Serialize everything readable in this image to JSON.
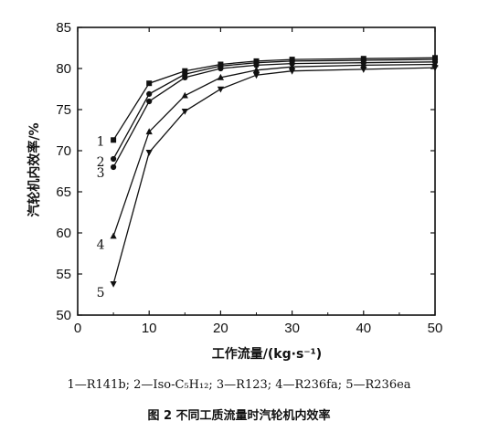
{
  "chart_data": {
    "type": "line",
    "xlabel": "工作流量/(kg·s⁻¹)",
    "ylabel": "汽轮机内效率/%",
    "xlim": [
      0,
      50
    ],
    "ylim": [
      50,
      85
    ],
    "xticks": [
      0,
      10,
      20,
      30,
      40,
      50
    ],
    "yticks": [
      50,
      55,
      60,
      65,
      70,
      75,
      80,
      85
    ],
    "grid": false,
    "x": [
      5,
      10,
      15,
      20,
      25,
      30,
      40,
      50
    ],
    "series": [
      {
        "name": "1",
        "marker": "square",
        "values": [
          71.3,
          78.2,
          79.7,
          80.5,
          80.9,
          81.1,
          81.2,
          81.3
        ]
      },
      {
        "name": "2",
        "marker": "circle",
        "values": [
          69.0,
          76.9,
          79.3,
          80.3,
          80.7,
          80.9,
          81.0,
          81.1
        ]
      },
      {
        "name": "3",
        "marker": "circle",
        "values": [
          68.0,
          76.0,
          78.9,
          80.0,
          80.4,
          80.6,
          80.7,
          80.8
        ]
      },
      {
        "name": "4",
        "marker": "triangle-up",
        "values": [
          59.6,
          72.3,
          76.7,
          78.9,
          79.8,
          80.2,
          80.4,
          80.5
        ]
      },
      {
        "name": "5",
        "marker": "triangle-down",
        "values": [
          53.8,
          69.8,
          74.8,
          77.5,
          79.2,
          79.7,
          79.9,
          80.1
        ]
      }
    ],
    "legend_text": "1—R141b; 2—Iso-C₅H₁₂; 3—R123; 4—R236fa; 5—R236ea",
    "caption": "图 2   不同工质流量时汽轮机内效率"
  }
}
